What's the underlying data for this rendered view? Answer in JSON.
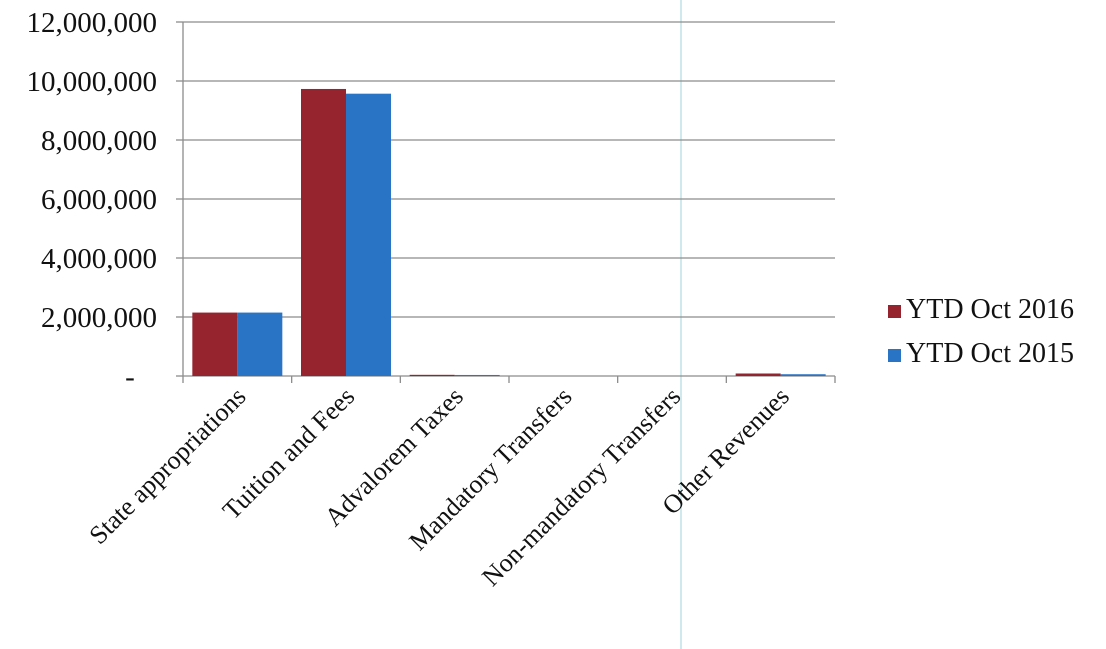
{
  "chart_data": {
    "type": "bar",
    "title": "",
    "xlabel": "",
    "ylabel": "",
    "categories": [
      "State appropriations",
      "Tuition and Fees",
      "Advalorem Taxes",
      "Mandatory Transfers",
      "Non-mandatory Transfers",
      "Other Revenues"
    ],
    "series": [
      {
        "name": "YTD Oct 2016",
        "color": "#96242e",
        "values": [
          2150000,
          9730000,
          40000,
          0,
          0,
          85000
        ]
      },
      {
        "name": "YTD Oct 2015",
        "color": "#2a74c5",
        "values": [
          2150000,
          9570000,
          35000,
          0,
          0,
          60000
        ]
      }
    ],
    "ylim": [
      0,
      12000000
    ],
    "yticks": [
      0,
      2000000,
      4000000,
      6000000,
      8000000,
      10000000,
      12000000
    ],
    "ytick_labels": [
      "-",
      "2,000,000",
      "4,000,000",
      "6,000,000",
      "8,000,000",
      "10,000,000",
      "12,000,000"
    ],
    "grid": true,
    "legend_position": "right"
  }
}
